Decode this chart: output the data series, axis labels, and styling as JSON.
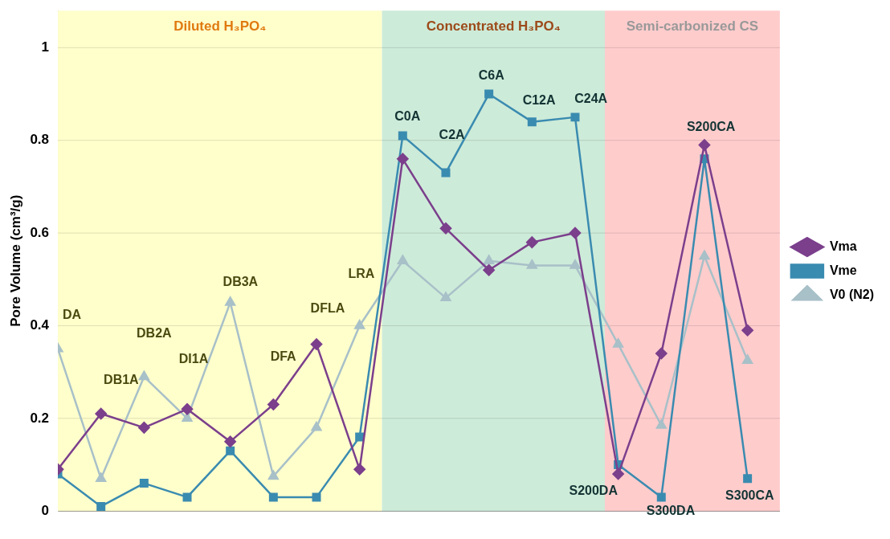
{
  "chart_data": {
    "type": "line",
    "ylabel": "Pore Volume (cm³/g)",
    "categories": [
      null,
      null,
      null,
      null,
      null,
      null,
      null,
      null,
      null,
      null,
      null,
      null,
      null,
      null,
      null,
      null,
      null
    ],
    "ylim": [
      0,
      1.08
    ],
    "yticks": [
      0,
      0.2,
      0.4,
      0.6,
      0.8,
      1
    ],
    "grid": "y",
    "legend": "right",
    "series": [
      {
        "name": "Vma",
        "color": "#7b3f8c",
        "marker": "diamond",
        "values": [
          0.09,
          0.21,
          0.18,
          0.22,
          0.15,
          0.23,
          0.36,
          0.09,
          0.76,
          0.61,
          0.52,
          0.58,
          0.6,
          0.08,
          0.34,
          0.79,
          0.39
        ]
      },
      {
        "name": "Vme",
        "color": "#3a8bb0",
        "marker": "square",
        "values": [
          0.08,
          0.01,
          0.06,
          0.03,
          0.13,
          0.03,
          0.03,
          0.16,
          0.81,
          0.73,
          0.9,
          0.84,
          0.85,
          0.1,
          0.03,
          0.76,
          0.07
        ]
      },
      {
        "name": "V0 (N2)",
        "color": "#a8c0c8",
        "marker": "triangle",
        "values": [
          0.35,
          0.07,
          0.29,
          0.2,
          0.45,
          0.075,
          0.18,
          0.4,
          0.54,
          0.46,
          0.54,
          0.53,
          0.53,
          0.36,
          0.185,
          0.55,
          0.325
        ]
      }
    ],
    "annotations": [
      "Diluted H₃PO₄",
      "Concentrated H₃PO₄",
      "Semi-carbonized CS",
      "DA",
      "DB1A",
      "DB2A",
      "DI1A",
      "DB3A",
      "DFA",
      "DFLA",
      "LRA",
      "C0A",
      "C2A",
      "C6A",
      "C12A",
      "C24A",
      "S200DA",
      "S300DA",
      "S200CA",
      "S300CA"
    ]
  }
}
